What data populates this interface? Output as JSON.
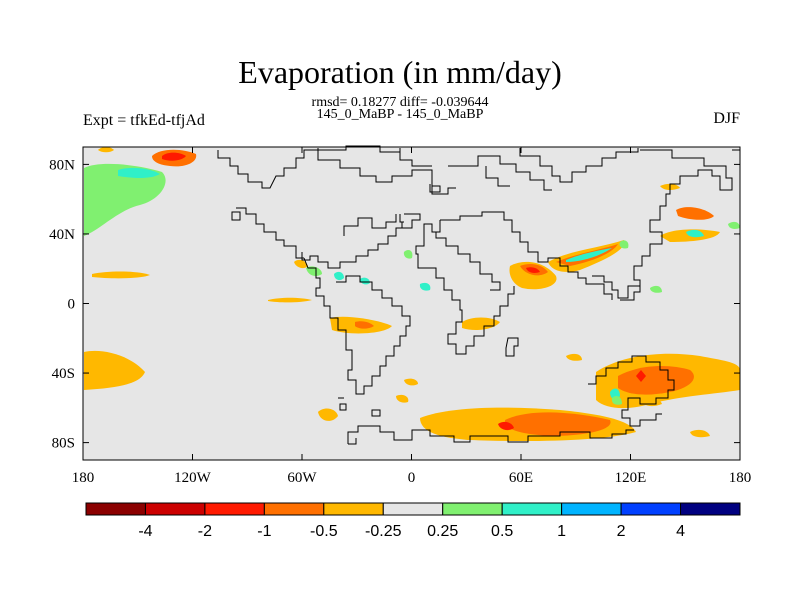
{
  "title": "Evaporation (in mm/day)",
  "stats": "rmsd= 0.18277 diff= -0.039644",
  "experiments": "145_0_MaBP - 145_0_MaBP",
  "expt_label": "Expt = tfkEd-tfjAd",
  "season": "DJF",
  "map": {
    "lon_range": [
      -180,
      180
    ],
    "lat_range": [
      -90,
      90
    ],
    "x_ticks": [
      {
        "value": -180,
        "label": "180"
      },
      {
        "value": -120,
        "label": "120W"
      },
      {
        "value": -60,
        "label": "60W"
      },
      {
        "value": 0,
        "label": "0"
      },
      {
        "value": 60,
        "label": "60E"
      },
      {
        "value": 120,
        "label": "120E"
      },
      {
        "value": 180,
        "label": "180"
      }
    ],
    "y_ticks": [
      {
        "value": 80,
        "label": "80N"
      },
      {
        "value": 40,
        "label": "40N"
      },
      {
        "value": 0,
        "label": "0"
      },
      {
        "value": -40,
        "label": "40S"
      },
      {
        "value": -80,
        "label": "80S"
      }
    ],
    "background_color": "#e6e6e6"
  },
  "colorbar": {
    "colors": [
      "#8b0000",
      "#cc0000",
      "#ff1a00",
      "#ff7000",
      "#ffb800",
      "#e6e6e6",
      "#80f070",
      "#30f0c8",
      "#00b4ff",
      "#0040ff",
      "#000080"
    ],
    "labels": [
      "-4",
      "-2",
      "-1",
      "-0.5",
      "-0.25",
      "0.25",
      "0.5",
      "1",
      "2",
      "4"
    ]
  }
}
